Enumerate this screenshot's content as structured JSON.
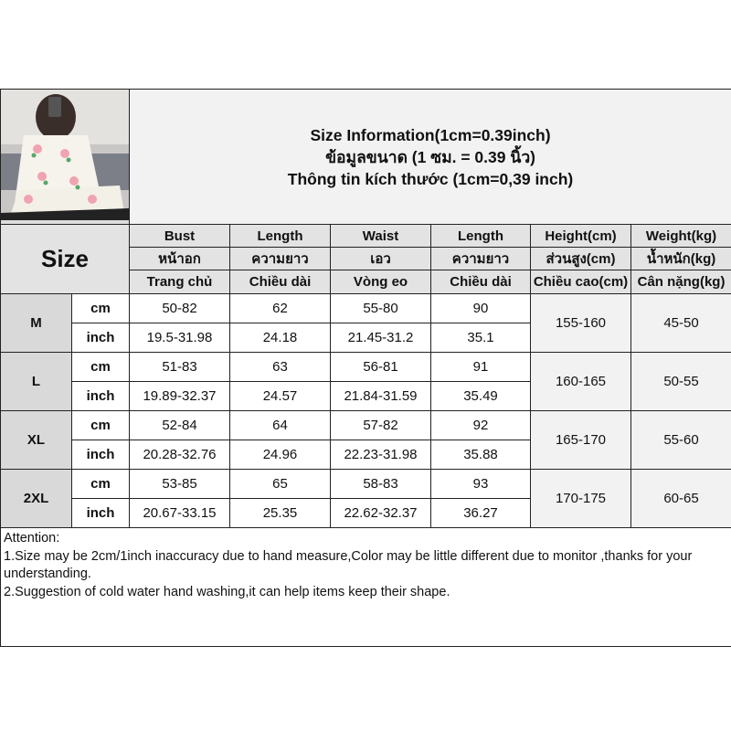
{
  "title_lines": [
    "Size Information(1cm=0.39inch)",
    "ข้อมูลขนาด (1 ซม. = 0.39 นิ้ว)",
    "Thông tin kích thước (1cm=0,39 inch)"
  ],
  "size_label": "Size",
  "headers": [
    [
      "Bust",
      "Length",
      "Waist",
      "Length",
      "Height(cm)",
      "Weight(kg)"
    ],
    [
      "หน้าอก",
      "ความยาว",
      "เอว",
      "ความยาว",
      "ส่วนสูง(cm)",
      "น้ำหนัก(kg)"
    ],
    [
      "Trang chủ",
      "Chiều dài",
      "Vòng eo",
      "Chiều dài",
      "Chiều cao(cm)",
      "Cân nặng(kg)"
    ]
  ],
  "sizes": [
    {
      "size": "M",
      "cm": [
        "50-82",
        "62",
        "55-80",
        "90"
      ],
      "inch": [
        "19.5-31.98",
        "24.18",
        "21.45-31.2",
        "35.1"
      ],
      "height": "155-160",
      "weight": "45-50"
    },
    {
      "size": "L",
      "cm": [
        "51-83",
        "63",
        "56-81",
        "91"
      ],
      "inch": [
        "19.89-32.37",
        "24.57",
        "21.84-31.59",
        "35.49"
      ],
      "height": "160-165",
      "weight": "50-55"
    },
    {
      "size": "XL",
      "cm": [
        "52-84",
        "64",
        "57-82",
        "92"
      ],
      "inch": [
        "20.28-32.76",
        "24.96",
        "22.23-31.98",
        "35.88"
      ],
      "height": "165-170",
      "weight": "55-60"
    },
    {
      "size": "2XL",
      "cm": [
        "53-85",
        "65",
        "58-83",
        "93"
      ],
      "inch": [
        "20.67-33.15",
        "25.35",
        "22.62-32.37",
        "36.27"
      ],
      "height": "170-175",
      "weight": "60-65"
    }
  ],
  "units": {
    "cm": "cm",
    "inch": "inch"
  },
  "notes": [
    "Attention:",
    "1.Size may be 2cm/1inch inaccuracy due to hand measure,Color may be little different due to monitor ,thanks for your understanding.",
    "2.Suggestion of cold water hand washing,it can help items keep their shape."
  ]
}
